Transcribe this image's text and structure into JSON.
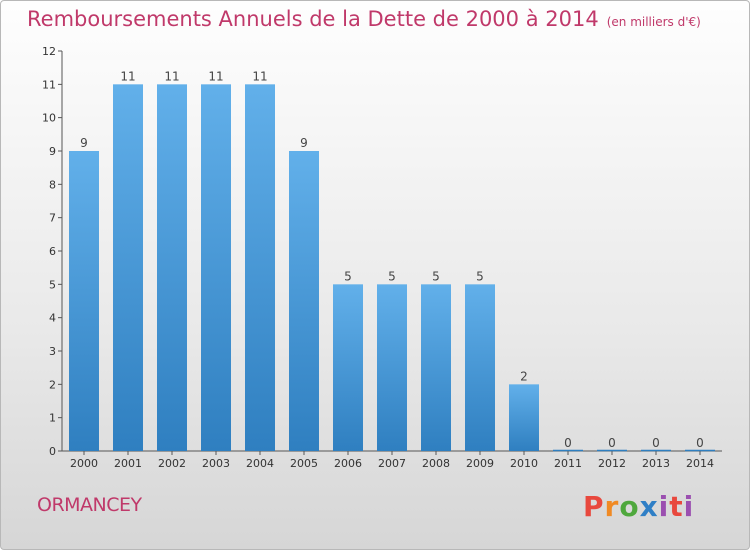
{
  "header": {
    "title": "Remboursements Annuels de la Dette de 2000 à 2014",
    "unit": "(en milliers d'€)"
  },
  "footer": {
    "place": "ORMANCEY",
    "logo": "Proxiti"
  },
  "colors": {
    "title": "#c0396a",
    "bar_light": "#62b0ea",
    "bar_dark": "#2f7fc0"
  },
  "chart_data": {
    "type": "bar",
    "title": "Remboursements Annuels de la Dette de 2000 à 2014",
    "xlabel": "",
    "ylabel": "",
    "categories": [
      "2000",
      "2001",
      "2002",
      "2003",
      "2004",
      "2005",
      "2006",
      "2007",
      "2008",
      "2009",
      "2010",
      "2011",
      "2012",
      "2013",
      "2014"
    ],
    "values": [
      9,
      11,
      11,
      11,
      11,
      9,
      5,
      5,
      5,
      5,
      2,
      0,
      0,
      0,
      0
    ],
    "ylim": [
      0,
      12
    ],
    "yticks": [
      0,
      1,
      2,
      3,
      4,
      5,
      6,
      7,
      8,
      9,
      10,
      11,
      12
    ],
    "grid": false,
    "legend": "none"
  }
}
